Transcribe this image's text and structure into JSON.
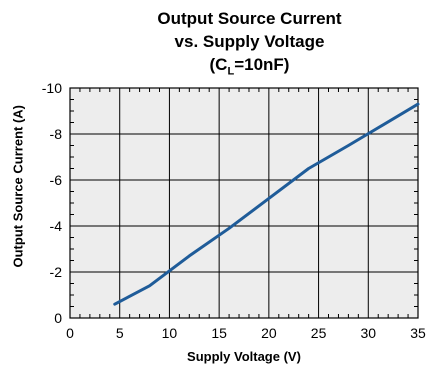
{
  "chart_data": {
    "type": "line",
    "title_line1": "Output Source Current",
    "title_line2": "vs. Supply Voltage",
    "title_line3_prefix": "(C",
    "title_line3_sub": "L",
    "title_line3_suffix": "=10nF)",
    "xlabel": "Supply Voltage (V)",
    "ylabel": "Output Source Current (A)",
    "xlim": [
      0,
      35
    ],
    "ylim": [
      0,
      -10
    ],
    "x_ticks": [
      "0",
      "5",
      "10",
      "15",
      "20",
      "25",
      "30",
      "35"
    ],
    "x_tick_values": [
      0,
      5,
      10,
      15,
      20,
      25,
      30,
      35
    ],
    "y_ticks": [
      "0",
      "-2",
      "-4",
      "-6",
      "-8",
      "-10"
    ],
    "y_tick_values": [
      0,
      -2,
      -4,
      -6,
      -8,
      -10
    ],
    "grid": true,
    "series": [
      {
        "color": "#1f5c99",
        "x": [
          4.5,
          8,
          12,
          16,
          20,
          24,
          28,
          35
        ],
        "y": [
          -0.6,
          -1.4,
          -2.7,
          -3.9,
          -5.2,
          -6.5,
          -7.5,
          -9.3
        ]
      }
    ]
  }
}
